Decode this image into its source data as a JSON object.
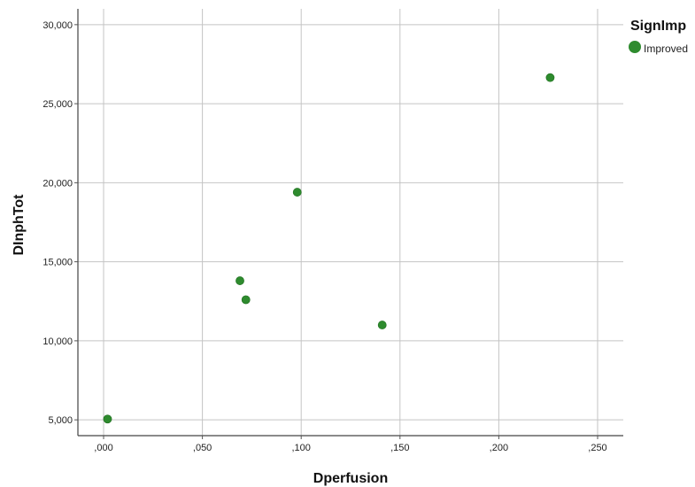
{
  "chart_data": {
    "type": "scatter",
    "xlabel": "Dperfusion",
    "ylabel": "DInphTot",
    "xlim": [
      -0.013,
      0.263
    ],
    "ylim": [
      4000,
      31000
    ],
    "x_ticks": [
      0.0,
      0.05,
      0.1,
      0.15,
      0.2,
      0.25
    ],
    "x_tick_labels": [
      ",000",
      ",050",
      ",100",
      ",150",
      ",200",
      ",250"
    ],
    "y_ticks": [
      5000,
      10000,
      15000,
      20000,
      25000,
      30000
    ],
    "y_tick_labels": [
      "5,000",
      "10,000",
      "15,000",
      "20,000",
      "25,000",
      "30,000"
    ],
    "grid": true,
    "legend": {
      "title": "SignImp",
      "position": "top-right",
      "entries": [
        {
          "label": "Improved",
          "color": "#2e8b2e"
        }
      ]
    },
    "series": [
      {
        "name": "Improved",
        "color": "#2e8b2e",
        "points": [
          {
            "x": 0.002,
            "y": 5050
          },
          {
            "x": 0.069,
            "y": 13800
          },
          {
            "x": 0.072,
            "y": 12600
          },
          {
            "x": 0.098,
            "y": 19400
          },
          {
            "x": 0.141,
            "y": 11000
          },
          {
            "x": 0.226,
            "y": 26650
          }
        ]
      }
    ]
  }
}
